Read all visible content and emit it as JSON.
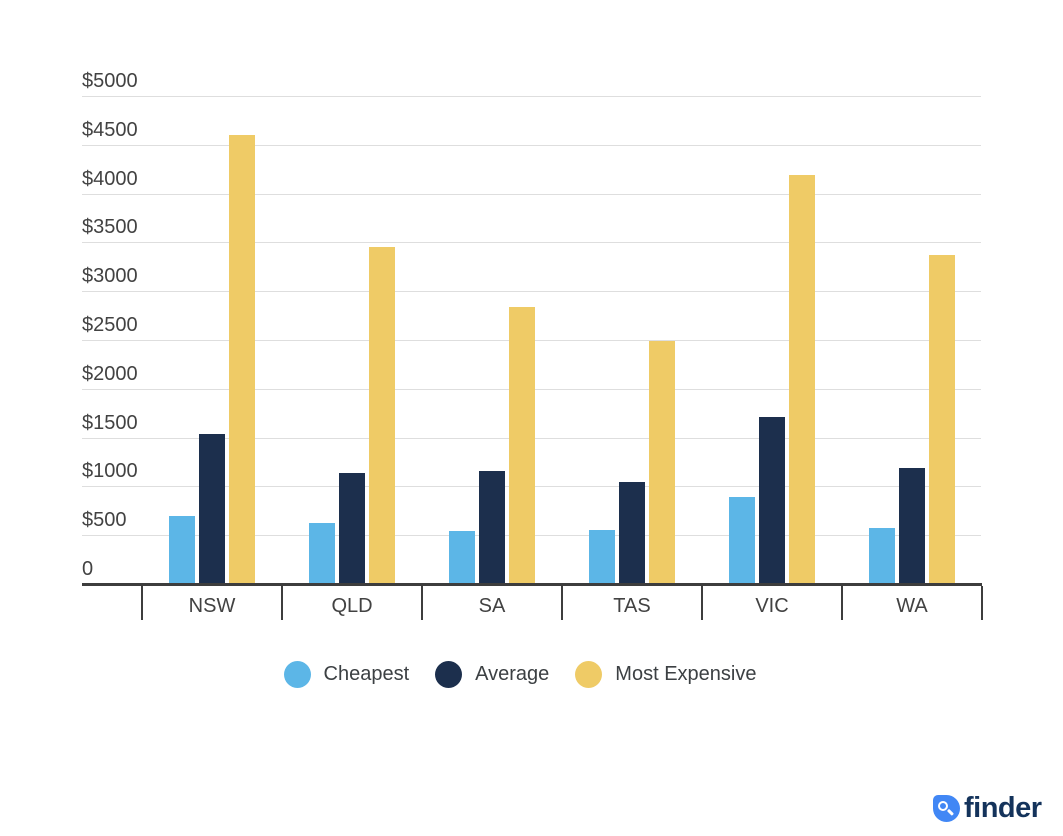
{
  "chart_data": {
    "type": "bar",
    "title": "",
    "categories": [
      "NSW",
      "QLD",
      "SA",
      "TAS",
      "VIC",
      "WA"
    ],
    "series": [
      {
        "name": "Cheapest",
        "color": "#5CB6E7",
        "values": [
          690,
          620,
          535,
          545,
          880,
          560
        ]
      },
      {
        "name": "Average",
        "color": "#1C2F4D",
        "values": [
          1530,
          1130,
          1145,
          1040,
          1700,
          1180
        ]
      },
      {
        "name": "Most Expensive",
        "color": "#EFCB66",
        "values": [
          4590,
          3440,
          2830,
          2480,
          4185,
          3360
        ]
      }
    ],
    "xlabel": "",
    "ylabel": "",
    "ylim": [
      0,
      5000
    ],
    "y_tick_step": 500,
    "y_tick_labels": [
      "$5000",
      "$4500",
      "$4000",
      "$3500",
      "$3000",
      "$2500",
      "$2000",
      "$1500",
      "$1000",
      "$500",
      "0"
    ],
    "grid": true,
    "legend_position": "bottom"
  },
  "legend": {
    "items": [
      {
        "label": "Cheapest",
        "color": "#5CB6E7"
      },
      {
        "label": "Average",
        "color": "#1C2F4D"
      },
      {
        "label": "Most Expensive",
        "color": "#EFCB66"
      }
    ]
  },
  "branding": {
    "logo_text": "finder",
    "logo_icon": "magnifier-icon",
    "logo_icon_color": "#4187F5",
    "logo_text_color": "#14335B"
  },
  "colors": {
    "gridline": "#DEDEDE",
    "axis": "#3D3D3D",
    "tick_text": "#424242",
    "legend_text": "#3C4043",
    "background": "#FFFFFF"
  }
}
